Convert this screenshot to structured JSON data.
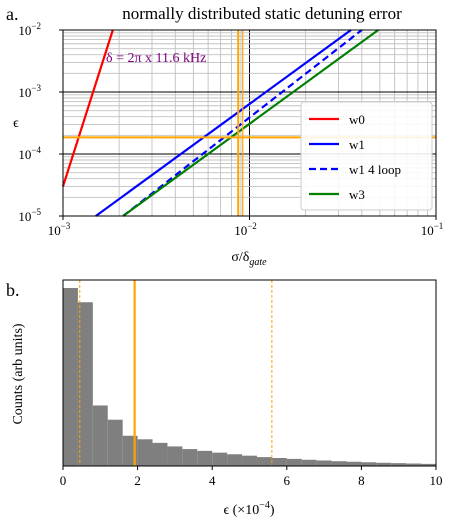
{
  "panels": {
    "a": "a.",
    "b": "b."
  },
  "colors": {
    "w0": "#ff0000",
    "w1": "#0000ff",
    "w3": "#008000",
    "marker": "#ffa500",
    "hist": "#7f7f7f",
    "annotation": "#800080"
  },
  "chart_data": [
    {
      "type": "line",
      "title": "normally distributed static detuning error",
      "xlabel_main": "σ/δ",
      "xlabel_sub": "gate",
      "ylabel": "ϵ",
      "xscale": "log",
      "yscale": "log",
      "xlim": [
        0.001,
        0.1
      ],
      "ylim": [
        1e-05,
        0.01
      ],
      "xticks": [
        {
          "value": 0.001,
          "label": "10",
          "exp": "−3"
        },
        {
          "value": 0.01,
          "label": "10",
          "exp": "−2"
        },
        {
          "value": 0.1,
          "label": "10",
          "exp": "−1"
        }
      ],
      "yticks": [
        {
          "value": 1e-05,
          "label": "10",
          "exp": "−5"
        },
        {
          "value": 0.0001,
          "label": "10",
          "exp": "−4"
        },
        {
          "value": 0.001,
          "label": "10",
          "exp": "−3"
        },
        {
          "value": 0.01,
          "label": "10",
          "exp": "−2"
        }
      ],
      "grid": true,
      "legend_position": "lower-right",
      "series": [
        {
          "name": "w0",
          "color": "#ff0000",
          "dash": "solid",
          "x": [
            0.001,
            0.00185
          ],
          "y": [
            3e-05,
            0.01
          ],
          "note_slope": 2
        },
        {
          "name": "w1",
          "color": "#0000ff",
          "dash": "solid",
          "x": [
            0.0015,
            0.035
          ],
          "y": [
            1e-05,
            0.01
          ]
        },
        {
          "name": "w1 4 loop",
          "color": "#0000ff",
          "dash": "dashed",
          "x": [
            0.0021,
            0.04
          ],
          "y": [
            1e-05,
            0.01
          ]
        },
        {
          "name": "w3",
          "color": "#008000",
          "dash": "solid",
          "x": [
            0.0021,
            0.049
          ],
          "y": [
            1e-05,
            0.01
          ]
        }
      ],
      "vlines": [
        {
          "x": 0.0087,
          "color": "#ffa500",
          "width": 2
        },
        {
          "x": 0.0092,
          "color": "#ffa500",
          "width": 1.2
        }
      ],
      "hlines": [
        {
          "y": 0.000185,
          "color": "#ffa500",
          "width": 2
        }
      ],
      "annotation": {
        "text": "δ = 2π x 11.6 kHz",
        "color": "#800080"
      }
    },
    {
      "type": "bar",
      "title": "",
      "xlabel": "ϵ (×10",
      "xlabel_exp": "−4",
      "xlabel_end": ")",
      "ylabel": "Counts (arb units)",
      "xlim": [
        0,
        10
      ],
      "xticks": [
        0,
        2,
        4,
        6,
        8,
        10
      ],
      "bin_width": 0.4,
      "values": [
        1.0,
        0.92,
        0.34,
        0.26,
        0.17,
        0.15,
        0.13,
        0.11,
        0.095,
        0.085,
        0.075,
        0.066,
        0.058,
        0.05,
        0.045,
        0.04,
        0.035,
        0.031,
        0.027,
        0.024,
        0.021,
        0.018,
        0.016,
        0.014,
        0.012
      ],
      "vlines": [
        {
          "x": 0.45,
          "color": "#ffa500",
          "style": "dashed",
          "width": 1
        },
        {
          "x": 1.92,
          "color": "#ffa500",
          "style": "solid",
          "width": 2.2
        },
        {
          "x": 5.6,
          "color": "#ffa500",
          "style": "dashed",
          "width": 1
        }
      ]
    }
  ]
}
